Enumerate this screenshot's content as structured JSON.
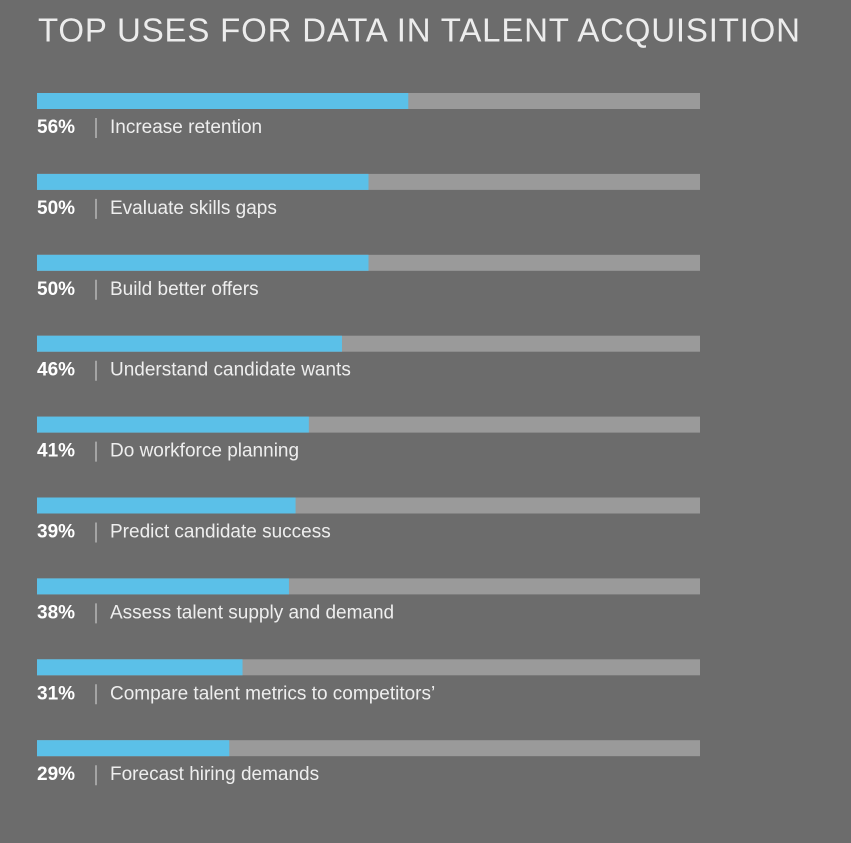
{
  "chart_data": {
    "type": "bar",
    "title": "TOP USES FOR DATA IN TALENT ACQUISITION",
    "categories": [
      "Increase retention",
      "Evaluate skills gaps",
      "Build better offers",
      "Understand candidate wants",
      "Do workforce planning",
      "Predict candidate success",
      "Assess talent supply and demand",
      "Compare talent metrics to competitors’",
      "Forecast hiring demands"
    ],
    "values": [
      56,
      50,
      50,
      46,
      41,
      39,
      38,
      31,
      29
    ],
    "value_labels": [
      "56%",
      "50%",
      "50%",
      "46%",
      "41%",
      "39%",
      "38%",
      "31%",
      "29%"
    ],
    "color": "#5bc0e8",
    "track_color": "#9a9a9a",
    "xlim": [
      0,
      100
    ]
  }
}
